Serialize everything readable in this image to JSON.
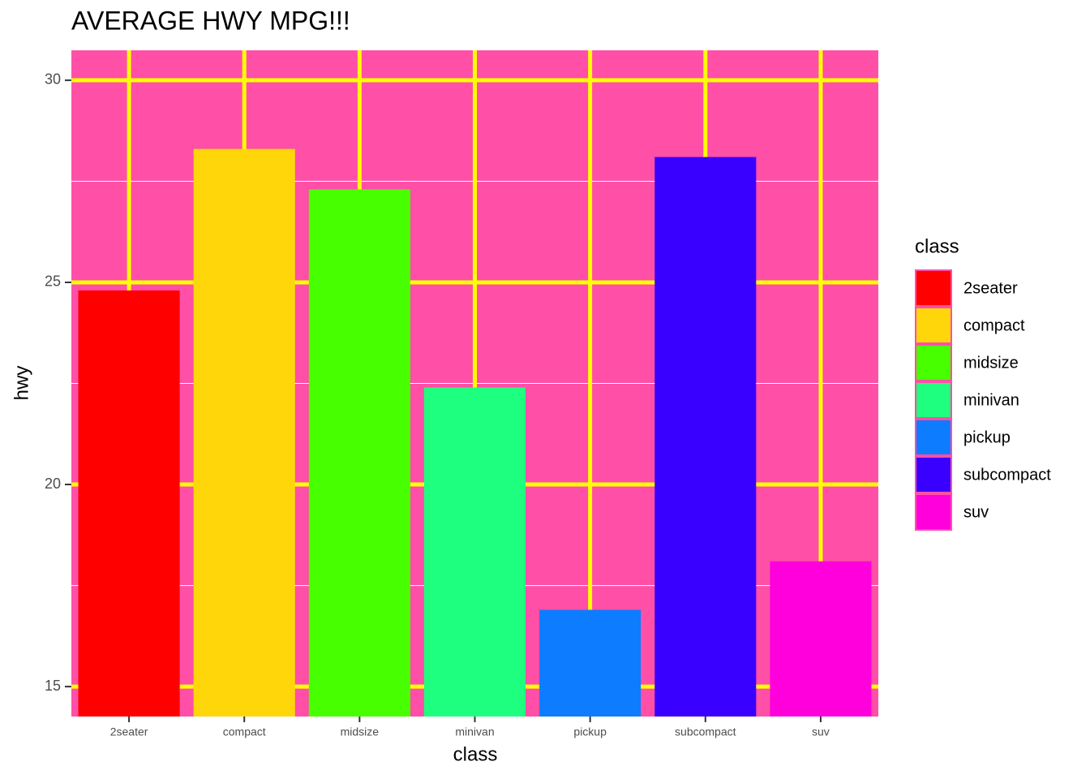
{
  "chart_data": {
    "type": "bar",
    "title": "AVERAGE HWY MPG!!!",
    "x_label": "class",
    "y_label": "hwy",
    "legend_title": "class",
    "categories": [
      "2seater",
      "compact",
      "midsize",
      "minivan",
      "pickup",
      "subcompact",
      "suv"
    ],
    "values": [
      24.8,
      28.3,
      27.3,
      22.4,
      16.9,
      28.1,
      18.1
    ],
    "colors": [
      "#ff0000",
      "#ffd60a",
      "#48ff00",
      "#1fff7f",
      "#0e7cff",
      "#3a00ff",
      "#ff00dc"
    ],
    "ylim": [
      14.26,
      30.74
    ],
    "yticks": [
      15,
      20,
      25,
      30
    ],
    "y_minor_ticks": [
      17.5,
      22.5,
      27.5
    ],
    "grid": true,
    "panel_color": "#ff4fa7",
    "grid_color": "#ffff00",
    "minor_grid_color": "#ffffff",
    "legend_position": "right"
  }
}
